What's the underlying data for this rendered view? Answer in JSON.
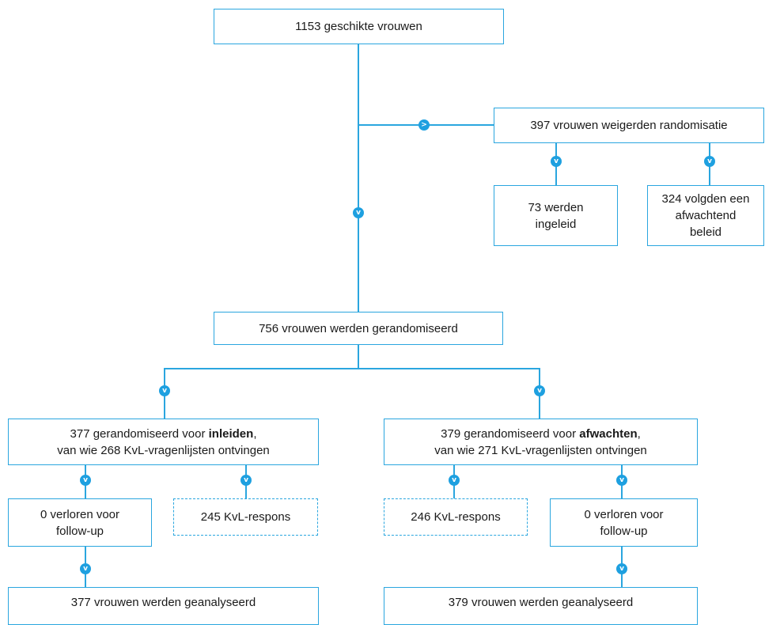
{
  "boxes": {
    "eligible": "1153 geschikte vrouwen",
    "refused": "397 vrouwen weigerden randomisatie",
    "refused_induced": [
      "73 werden",
      "ingeleid"
    ],
    "refused_expectant": [
      "324 volgden een",
      "afwachtend",
      "beleid"
    ],
    "randomised": "756 vrouwen werden gerandomiseerd",
    "induce_group": {
      "line1_pre": "377 gerandomiseerd voor ",
      "line1_bold": "inleiden",
      "line1_post": ",",
      "line2": "van wie 268 KvL-vragenlijsten ontvingen"
    },
    "expectant_group": {
      "line1_pre": "379 gerandomiseerd voor ",
      "line1_bold": "afwachten",
      "line1_post": ",",
      "line2": "van wie 271 KvL-vragenlijsten ontvingen"
    },
    "induce_lost": [
      "0 verloren voor",
      "follow-up"
    ],
    "induce_response": "245 KvL-respons",
    "expectant_response": "246 KvL-respons",
    "expectant_lost": [
      "0 verloren voor",
      "follow-up"
    ],
    "induce_analysed": "377 vrouwen werden geanalyseerd",
    "expectant_analysed": "379 vrouwen werden geanalyseerd"
  },
  "arrow_glyphs": {
    "down": "v",
    "right": ">"
  },
  "colors": {
    "line": "#2aa6df",
    "arrow": "#1ea0e0",
    "text": "#1a1a1a"
  }
}
